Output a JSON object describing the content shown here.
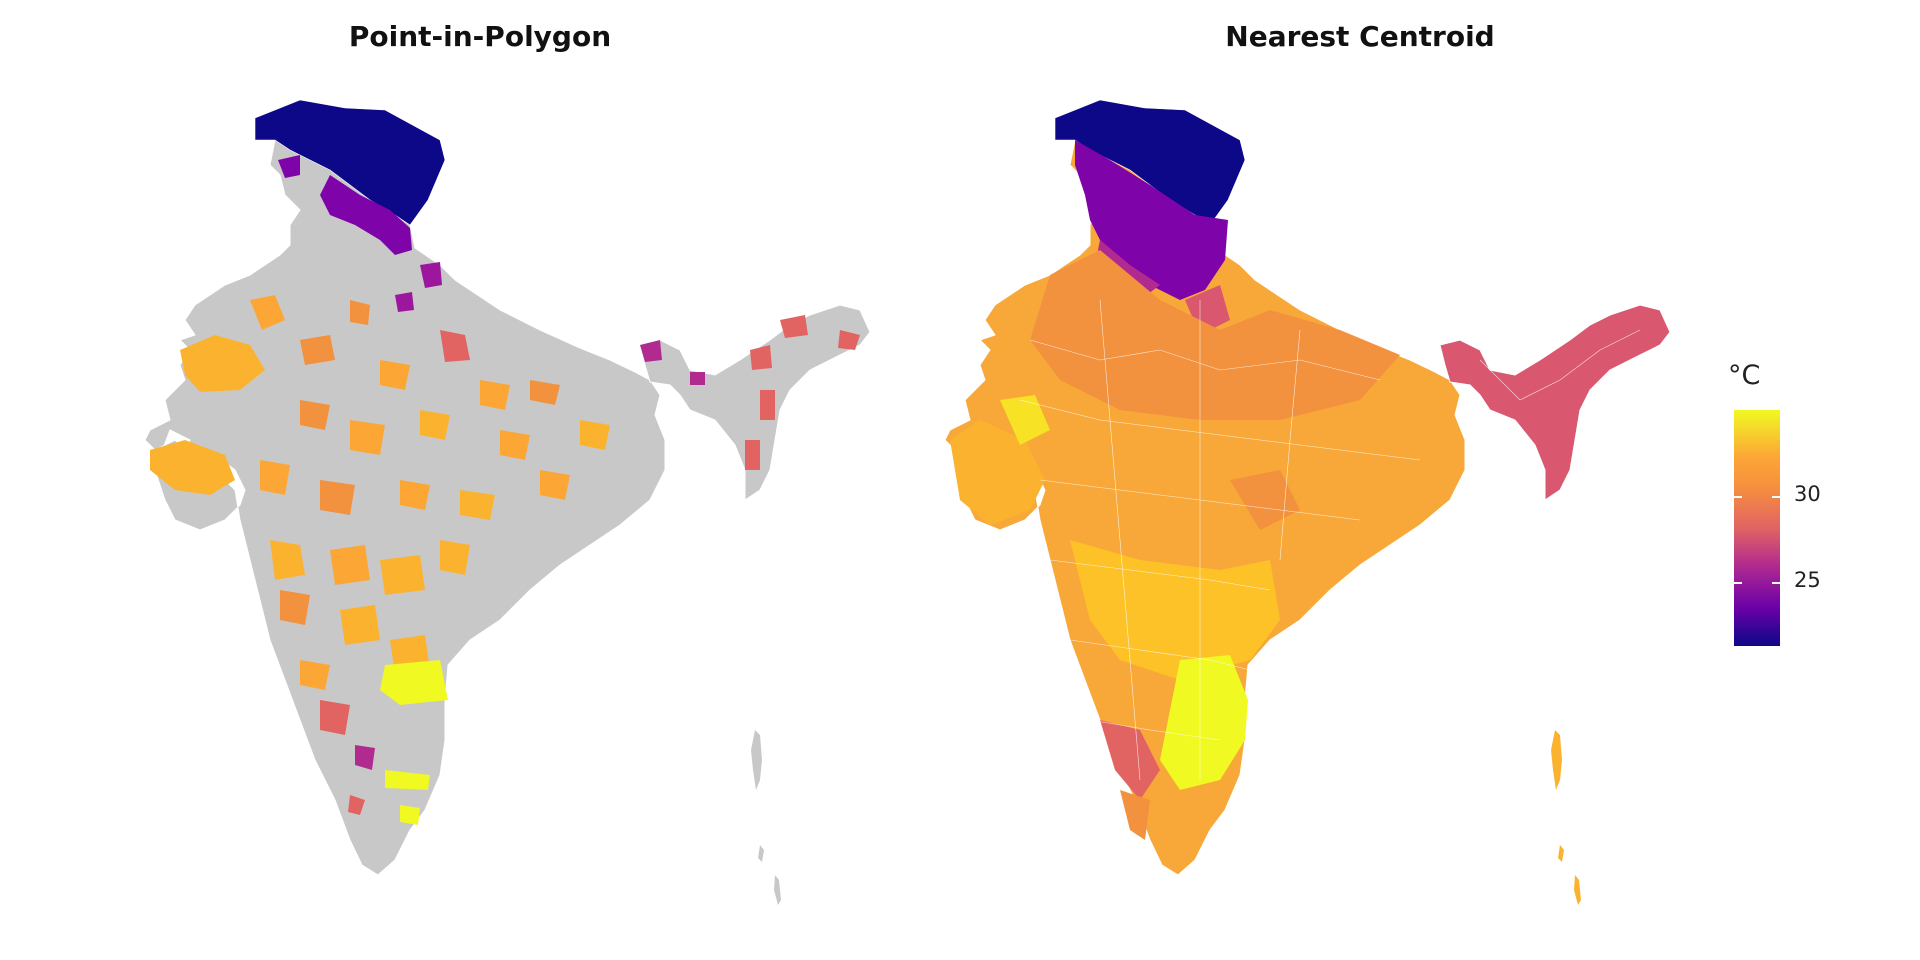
{
  "panels": [
    {
      "title": "Point-in-Polygon"
    },
    {
      "title": "Nearest Centroid"
    }
  ],
  "legend": {
    "title": "°C",
    "ticks": [
      {
        "value": 30,
        "label": "30"
      },
      {
        "value": 25,
        "label": "25"
      }
    ],
    "colors": [
      "#0d0887",
      "#6a00a8",
      "#b12a90",
      "#e16462",
      "#fca636",
      "#f0f921"
    ]
  },
  "colors": {
    "missing": "#c8c8c8",
    "border": "#ffffff",
    "cold": "#0d0887",
    "purple": "#7e03a8",
    "magenta": "#b12a90",
    "red": "#e16462",
    "orange": "#f2913e",
    "amber": "#fbb32f",
    "yellow": "#f0f921"
  }
}
